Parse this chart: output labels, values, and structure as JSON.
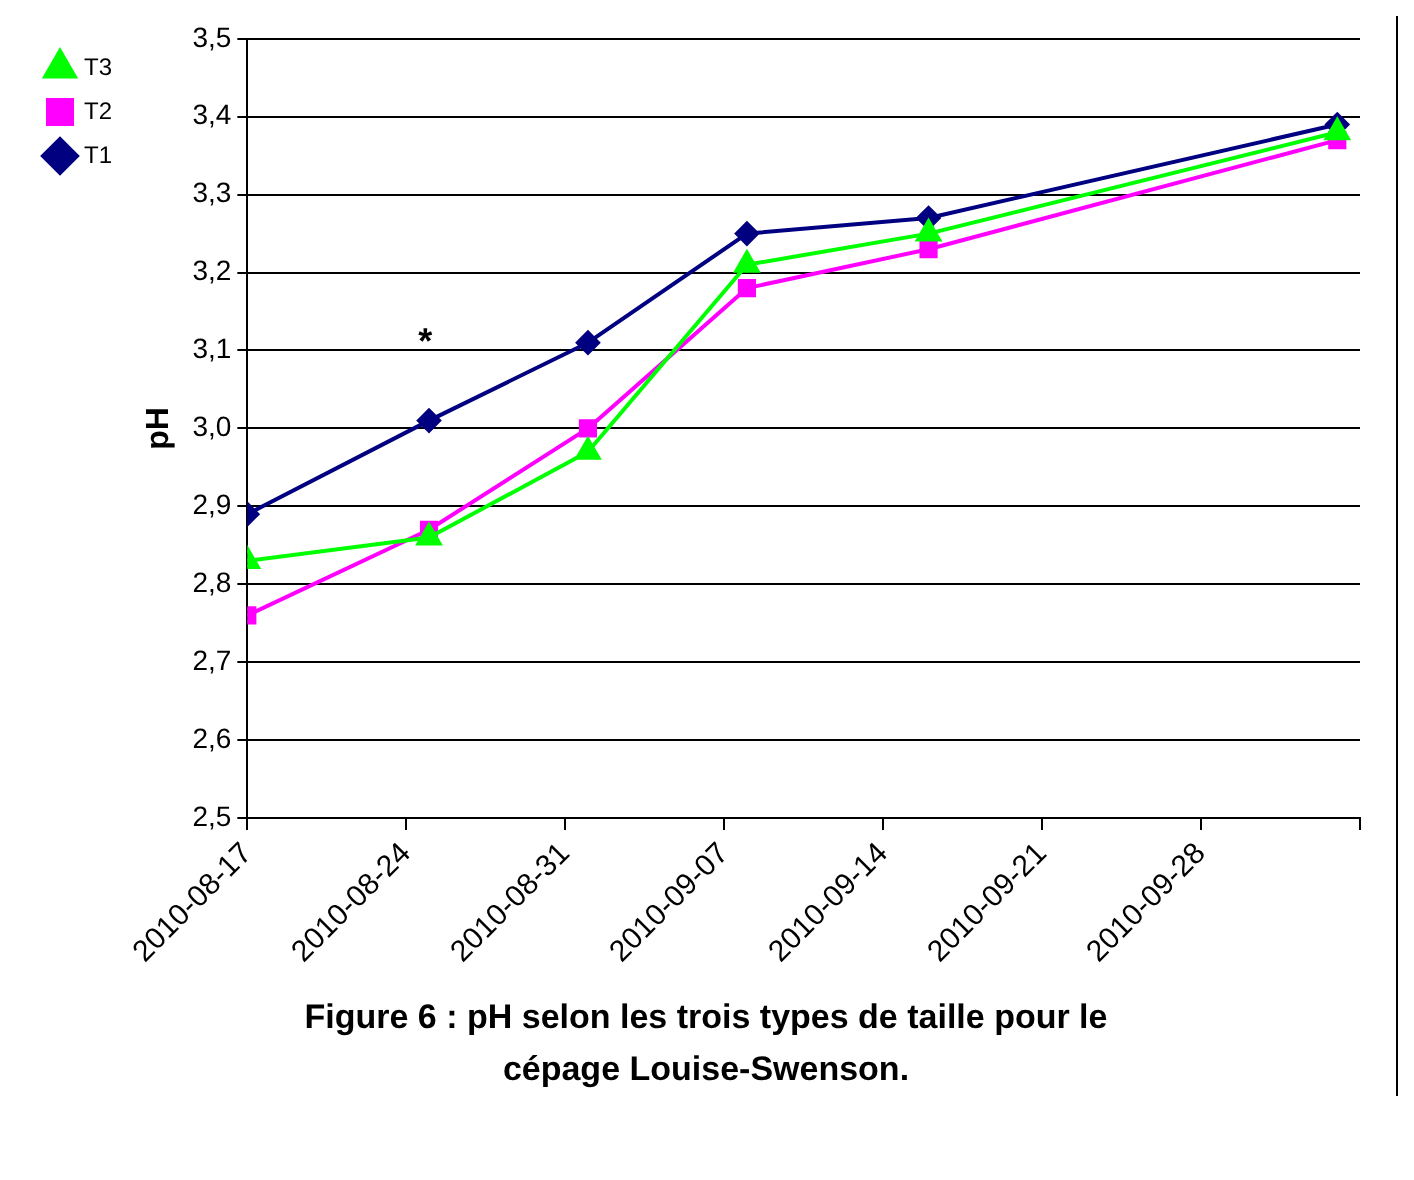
{
  "chart_data": {
    "type": "line",
    "title": "Figure 6 : pH selon les trois types de taille pour le cépage Louise-Swenson.",
    "ylabel": "pH",
    "x": [
      "2010-08-17",
      "2010-08-25",
      "2010-09-01",
      "2010-09-08",
      "2010-09-16",
      "2010-10-04"
    ],
    "series": [
      {
        "name": "T1",
        "color": "#000080",
        "marker": "diamond",
        "values": [
          2.89,
          3.01,
          3.11,
          3.25,
          3.27,
          3.39
        ]
      },
      {
        "name": "T2",
        "color": "#ff00ff",
        "marker": "square",
        "values": [
          2.76,
          2.87,
          3.0,
          3.18,
          3.23,
          3.37
        ]
      },
      {
        "name": "T3",
        "color": "#00ff00",
        "marker": "triangle",
        "values": [
          2.83,
          2.86,
          2.97,
          3.21,
          3.25,
          3.38
        ]
      }
    ],
    "xlim": [
      "2010-08-17",
      "2010-10-05"
    ],
    "xticks": [
      "2010-08-17",
      "2010-08-24",
      "2010-08-31",
      "2010-09-07",
      "2010-09-14",
      "2010-09-21",
      "2010-09-28",
      {
        "value": "2010-10-05",
        "label": null
      }
    ],
    "ylim": [
      2.5,
      3.5
    ],
    "yticks": [
      {
        "value": 2.5,
        "label": "2,5"
      },
      {
        "value": 2.6,
        "label": "2,6"
      },
      {
        "value": 2.7,
        "label": "2,7"
      },
      {
        "value": 2.8,
        "label": "2,8"
      },
      {
        "value": 2.9,
        "label": "2,9"
      },
      {
        "value": 3.0,
        "label": "3,0"
      },
      {
        "value": 3.1,
        "label": "3,1"
      },
      {
        "value": 3.2,
        "label": "3,2"
      },
      {
        "value": 3.3,
        "label": "3,3"
      },
      {
        "value": 3.4,
        "label": "3,4"
      },
      {
        "value": 3.5,
        "label": "3,5"
      }
    ],
    "grid": "y",
    "legend": "top left",
    "line_style": "solid",
    "annotations": [
      "*"
    ]
  }
}
